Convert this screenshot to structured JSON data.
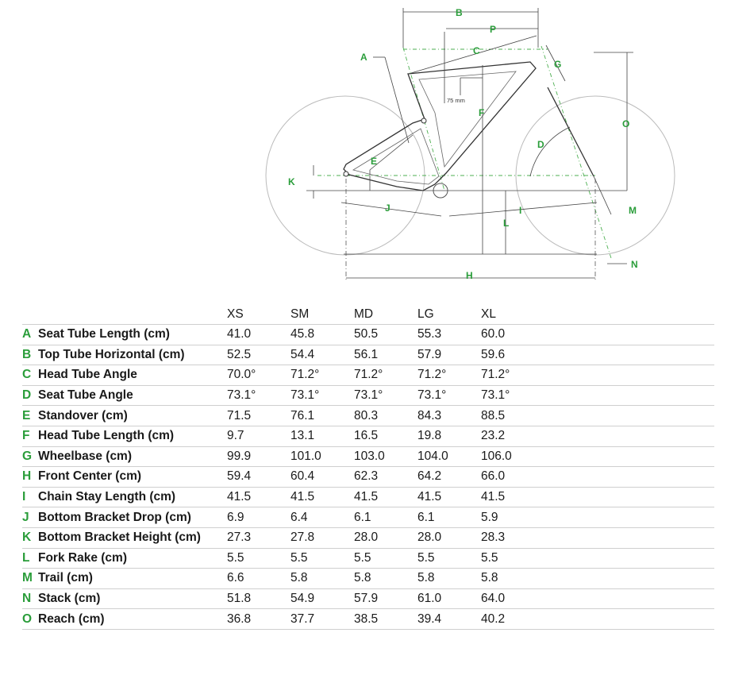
{
  "diagram": {
    "labels": [
      "A",
      "B",
      "C",
      "D",
      "E",
      "F",
      "G",
      "H",
      "I",
      "J",
      "K",
      "L",
      "M",
      "N",
      "O",
      "P"
    ],
    "note": "75 mm"
  },
  "table": {
    "sizes": [
      "XS",
      "SM",
      "MD",
      "LG",
      "XL"
    ],
    "rows": [
      {
        "id": "A",
        "name": "Seat Tube Length (cm)",
        "values": [
          "41.0",
          "45.8",
          "50.5",
          "55.3",
          "60.0"
        ]
      },
      {
        "id": "B",
        "name": "Top Tube Horizontal (cm)",
        "values": [
          "52.5",
          "54.4",
          "56.1",
          "57.9",
          "59.6"
        ]
      },
      {
        "id": "C",
        "name": "Head Tube Angle",
        "values": [
          "70.0°",
          "71.2°",
          "71.2°",
          "71.2°",
          "71.2°"
        ]
      },
      {
        "id": "D",
        "name": "Seat Tube Angle",
        "values": [
          "73.1°",
          "73.1°",
          "73.1°",
          "73.1°",
          "73.1°"
        ]
      },
      {
        "id": "E",
        "name": "Standover (cm)",
        "values": [
          "71.5",
          "76.1",
          "80.3",
          "84.3",
          "88.5"
        ]
      },
      {
        "id": "F",
        "name": "Head Tube Length (cm)",
        "values": [
          "9.7",
          "13.1",
          "16.5",
          "19.8",
          "23.2"
        ]
      },
      {
        "id": "G",
        "name": "Wheelbase (cm)",
        "values": [
          "99.9",
          "101.0",
          "103.0",
          "104.0",
          "106.0"
        ]
      },
      {
        "id": "H",
        "name": "Front Center (cm)",
        "values": [
          "59.4",
          "60.4",
          "62.3",
          "64.2",
          "66.0"
        ]
      },
      {
        "id": "I",
        "name": "Chain Stay Length (cm)",
        "values": [
          "41.5",
          "41.5",
          "41.5",
          "41.5",
          "41.5"
        ]
      },
      {
        "id": "J",
        "name": "Bottom Bracket Drop (cm)",
        "values": [
          "6.9",
          "6.4",
          "6.1",
          "6.1",
          "5.9"
        ]
      },
      {
        "id": "K",
        "name": "Bottom Bracket Height (cm)",
        "values": [
          "27.3",
          "27.8",
          "28.0",
          "28.0",
          "28.3"
        ]
      },
      {
        "id": "L",
        "name": "Fork Rake (cm)",
        "values": [
          "5.5",
          "5.5",
          "5.5",
          "5.5",
          "5.5"
        ]
      },
      {
        "id": "M",
        "name": "Trail (cm)",
        "values": [
          "6.6",
          "5.8",
          "5.8",
          "5.8",
          "5.8"
        ]
      },
      {
        "id": "N",
        "name": "Stack (cm)",
        "values": [
          "51.8",
          "54.9",
          "57.9",
          "61.0",
          "64.0"
        ]
      },
      {
        "id": "O",
        "name": "Reach (cm)",
        "values": [
          "36.8",
          "37.7",
          "38.5",
          "39.4",
          "40.2"
        ]
      }
    ]
  }
}
